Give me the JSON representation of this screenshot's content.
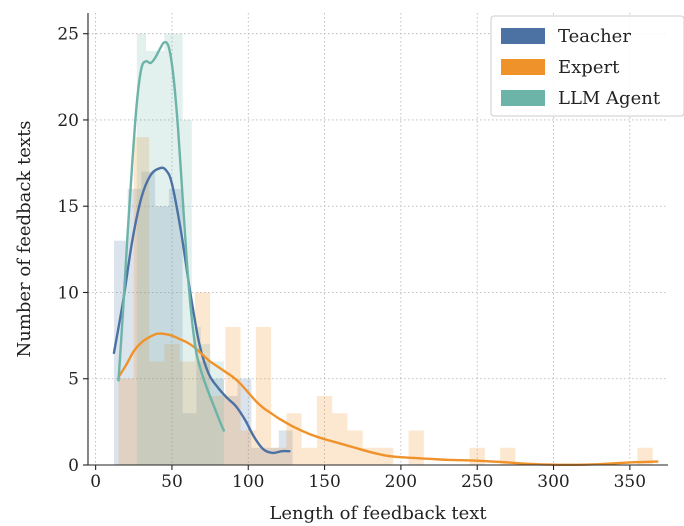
{
  "chart_data": {
    "type": "histogram-kde",
    "xlabel": "Length of feedback text",
    "ylabel": "Number of feedback texts",
    "xlim": [
      -5,
      375
    ],
    "ylim": [
      0,
      26.2
    ],
    "x_ticks": [
      0,
      50,
      100,
      150,
      200,
      250,
      300,
      350
    ],
    "y_ticks": [
      0,
      5,
      10,
      15,
      20,
      25
    ],
    "grid": true,
    "legend_position": "top-right",
    "series": [
      {
        "name": "Teacher",
        "color": "#4c72a4",
        "bar_opacity": 0.2,
        "bins": [
          {
            "x0": 12,
            "x1": 21,
            "count": 13
          },
          {
            "x0": 21,
            "x1": 30,
            "count": 16
          },
          {
            "x0": 30,
            "x1": 39,
            "count": 17
          },
          {
            "x0": 39,
            "x1": 48,
            "count": 15
          },
          {
            "x0": 48,
            "x1": 57,
            "count": 16
          },
          {
            "x0": 57,
            "x1": 66,
            "count": 3
          },
          {
            "x0": 66,
            "x1": 75,
            "count": 6
          },
          {
            "x0": 75,
            "x1": 84,
            "count": 5
          },
          {
            "x0": 84,
            "x1": 93,
            "count": 4
          },
          {
            "x0": 93,
            "x1": 102,
            "count": 5
          },
          {
            "x0": 102,
            "x1": 111,
            "count": 1
          },
          {
            "x0": 111,
            "x1": 120,
            "count": 1
          },
          {
            "x0": 120,
            "x1": 129,
            "count": 2
          }
        ],
        "kde": [
          [
            12,
            6.5
          ],
          [
            18,
            9.5
          ],
          [
            24,
            13
          ],
          [
            30,
            15.5
          ],
          [
            36,
            16.8
          ],
          [
            42,
            17.2
          ],
          [
            46,
            17.1
          ],
          [
            50,
            16.3
          ],
          [
            56,
            13.5
          ],
          [
            62,
            10
          ],
          [
            68,
            7
          ],
          [
            74,
            5.3
          ],
          [
            80,
            4.5
          ],
          [
            86,
            3.9
          ],
          [
            92,
            3.4
          ],
          [
            98,
            2.6
          ],
          [
            104,
            1.6
          ],
          [
            110,
            0.9
          ],
          [
            116,
            0.7
          ],
          [
            122,
            0.8
          ],
          [
            127,
            0.8
          ]
        ]
      },
      {
        "name": "Expert",
        "color": "#f0922a",
        "bar_opacity": 0.22,
        "bins": [
          {
            "x0": 15,
            "x1": 25,
            "count": 5
          },
          {
            "x0": 25,
            "x1": 35,
            "count": 19
          },
          {
            "x0": 35,
            "x1": 45,
            "count": 6
          },
          {
            "x0": 45,
            "x1": 55,
            "count": 7
          },
          {
            "x0": 55,
            "x1": 65,
            "count": 6
          },
          {
            "x0": 65,
            "x1": 75,
            "count": 10
          },
          {
            "x0": 75,
            "x1": 85,
            "count": 4
          },
          {
            "x0": 85,
            "x1": 95,
            "count": 8
          },
          {
            "x0": 95,
            "x1": 105,
            "count": 2
          },
          {
            "x0": 105,
            "x1": 115,
            "count": 8
          },
          {
            "x0": 115,
            "x1": 125,
            "count": 1
          },
          {
            "x0": 125,
            "x1": 135,
            "count": 3
          },
          {
            "x0": 135,
            "x1": 145,
            "count": 1
          },
          {
            "x0": 145,
            "x1": 155,
            "count": 4
          },
          {
            "x0": 155,
            "x1": 165,
            "count": 3
          },
          {
            "x0": 165,
            "x1": 175,
            "count": 2
          },
          {
            "x0": 175,
            "x1": 185,
            "count": 1
          },
          {
            "x0": 185,
            "x1": 195,
            "count": 1
          },
          {
            "x0": 205,
            "x1": 215,
            "count": 2
          },
          {
            "x0": 245,
            "x1": 255,
            "count": 1
          },
          {
            "x0": 265,
            "x1": 275,
            "count": 1
          },
          {
            "x0": 355,
            "x1": 365,
            "count": 1
          }
        ],
        "kde": [
          [
            15,
            5.1
          ],
          [
            20,
            5.8
          ],
          [
            25,
            6.6
          ],
          [
            30,
            7.1
          ],
          [
            35,
            7.4
          ],
          [
            40,
            7.6
          ],
          [
            45,
            7.6
          ],
          [
            50,
            7.5
          ],
          [
            55,
            7.3
          ],
          [
            60,
            7.1
          ],
          [
            65,
            6.8
          ],
          [
            70,
            6.4
          ],
          [
            75,
            6.0
          ],
          [
            80,
            5.7
          ],
          [
            85,
            5.4
          ],
          [
            90,
            5.1
          ],
          [
            95,
            4.7
          ],
          [
            100,
            4.2
          ],
          [
            105,
            3.7
          ],
          [
            110,
            3.3
          ],
          [
            115,
            3.0
          ],
          [
            120,
            2.7
          ],
          [
            130,
            2.2
          ],
          [
            140,
            1.8
          ],
          [
            150,
            1.5
          ],
          [
            160,
            1.25
          ],
          [
            170,
            1.0
          ],
          [
            180,
            0.75
          ],
          [
            190,
            0.55
          ],
          [
            200,
            0.45
          ],
          [
            210,
            0.4
          ],
          [
            220,
            0.35
          ],
          [
            230,
            0.3
          ],
          [
            240,
            0.28
          ],
          [
            250,
            0.25
          ],
          [
            260,
            0.2
          ],
          [
            270,
            0.15
          ],
          [
            280,
            0.08
          ],
          [
            290,
            0.04
          ],
          [
            300,
            0.02
          ],
          [
            310,
            0.01
          ],
          [
            320,
            0.02
          ],
          [
            330,
            0.05
          ],
          [
            340,
            0.1
          ],
          [
            350,
            0.15
          ],
          [
            360,
            0.18
          ],
          [
            368,
            0.2
          ]
        ]
      },
      {
        "name": "LLM Agent",
        "color": "#6cb3a8",
        "bar_opacity": 0.2,
        "bins": [
          {
            "x0": 15,
            "x1": 21,
            "count": 0
          },
          {
            "x0": 21,
            "x1": 27,
            "count": 0
          },
          {
            "x0": 27,
            "x1": 33,
            "count": 25
          },
          {
            "x0": 33,
            "x1": 39,
            "count": 24
          },
          {
            "x0": 39,
            "x1": 45,
            "count": 24
          },
          {
            "x0": 45,
            "x1": 51,
            "count": 25
          },
          {
            "x0": 51,
            "x1": 57,
            "count": 25
          },
          {
            "x0": 57,
            "x1": 63,
            "count": 20
          },
          {
            "x0": 63,
            "x1": 69,
            "count": 8
          },
          {
            "x0": 69,
            "x1": 75,
            "count": 7
          },
          {
            "x0": 75,
            "x1": 84,
            "count": 6
          }
        ],
        "kde": [
          [
            15,
            4.9
          ],
          [
            18,
            9
          ],
          [
            21,
            13.5
          ],
          [
            24,
            17.5
          ],
          [
            27,
            21
          ],
          [
            30,
            23
          ],
          [
            33,
            23.4
          ],
          [
            36,
            23.3
          ],
          [
            39,
            23.6
          ],
          [
            42,
            24.1
          ],
          [
            45,
            24.5
          ],
          [
            48,
            24.2
          ],
          [
            51,
            22.5
          ],
          [
            54,
            19.5
          ],
          [
            57,
            15.5
          ],
          [
            60,
            11.5
          ],
          [
            63,
            8.5
          ],
          [
            66,
            6.5
          ],
          [
            70,
            5.2
          ],
          [
            74,
            4.2
          ],
          [
            78,
            3.3
          ],
          [
            82,
            2.4
          ],
          [
            84,
            2.0
          ]
        ]
      }
    ]
  }
}
